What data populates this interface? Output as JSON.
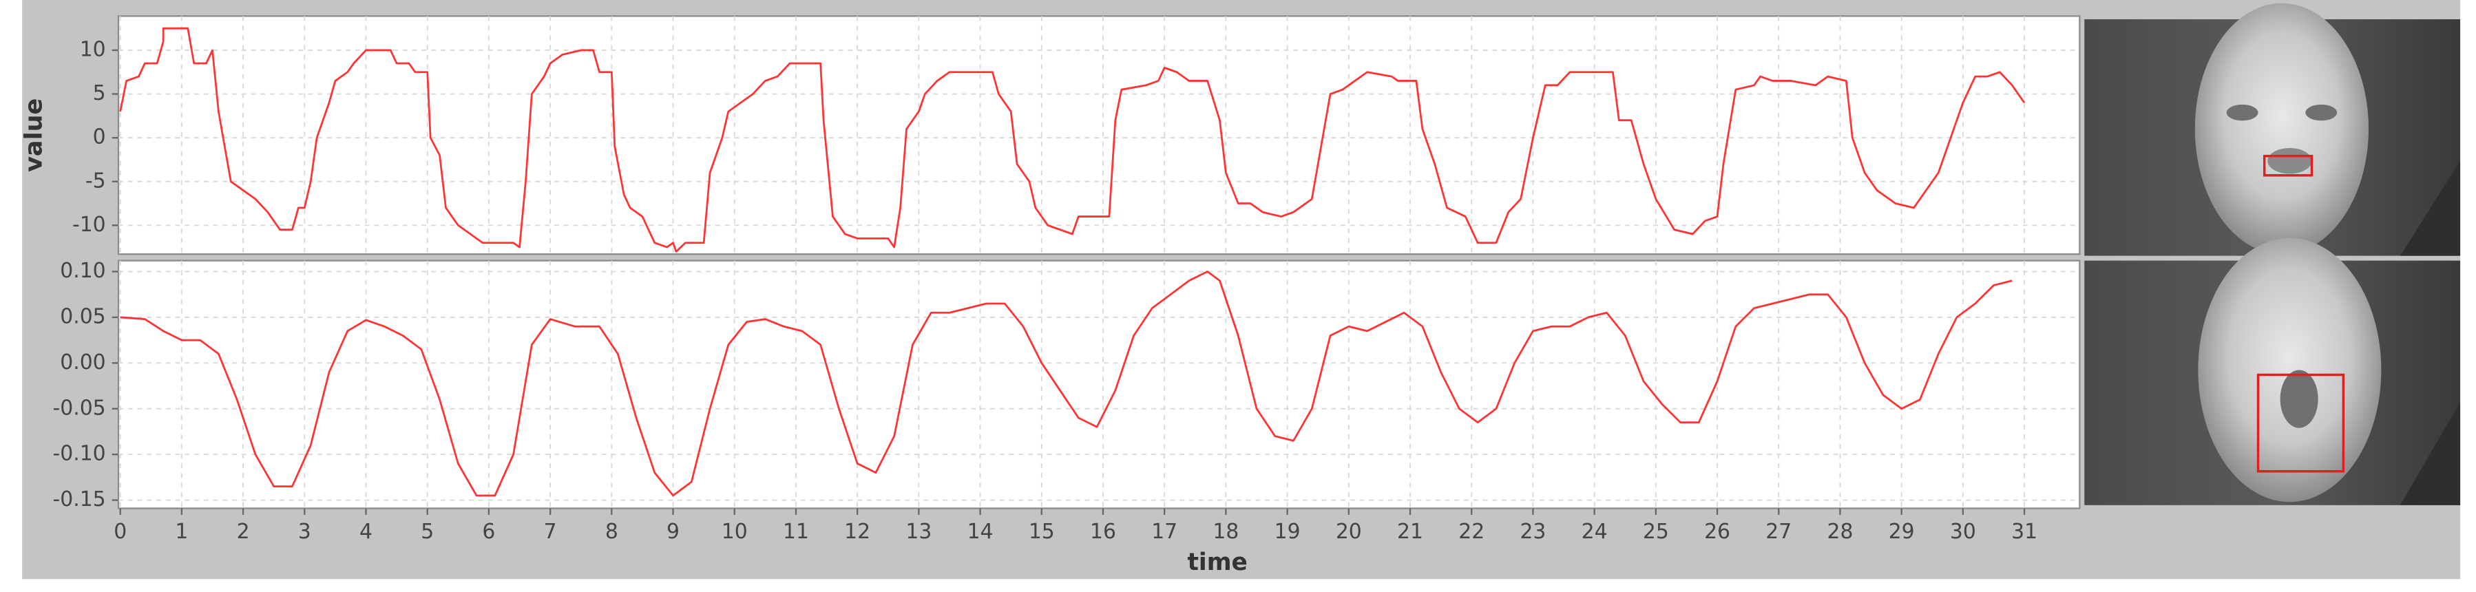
{
  "chart_data": [
    {
      "type": "line",
      "ylabel": "value",
      "color": "#ff3333",
      "x": [
        0,
        0.1,
        0.3,
        0.4,
        0.6,
        0.7,
        0.7,
        1.1,
        1.2,
        1.4,
        1.5,
        1.6,
        1.7,
        1.8,
        2,
        2.2,
        2.4,
        2.6,
        2.8,
        2.9,
        3.0,
        3.1,
        3.2,
        3.4,
        3.5,
        3.7,
        3.8,
        4.0,
        4.4,
        4.5,
        4.7,
        4.8,
        5.0,
        5.05,
        5.2,
        5.3,
        5.5,
        5.7,
        5.9,
        6.2,
        6.4,
        6.5,
        6.6,
        6.7,
        6.9,
        7.0,
        7.2,
        7.5,
        7.7,
        7.8,
        8.0,
        8.05,
        8.2,
        8.3,
        8.5,
        8.7,
        8.9,
        9.0,
        9.05,
        9.2,
        9.5,
        9.6,
        9.8,
        9.9,
        10.1,
        10.3,
        10.5,
        10.7,
        10.9,
        11.4,
        11.45,
        11.6,
        11.8,
        12.0,
        12.5,
        12.6,
        12.7,
        12.8,
        13.0,
        13.1,
        13.3,
        13.5,
        14.2,
        14.3,
        14.5,
        14.6,
        14.8,
        14.9,
        15.1,
        15.3,
        15.5,
        15.6,
        16.1,
        16.2,
        16.3,
        16.7,
        16.9,
        17.0,
        17.2,
        17.4,
        17.7,
        17.9,
        18.0,
        18.2,
        18.4,
        18.6,
        18.9,
        19.1,
        19.4,
        19.5,
        19.7,
        19.9,
        20.1,
        20.3,
        20.7,
        20.8,
        21.1,
        21.2,
        21.4,
        21.6,
        21.9,
        22.1,
        22.4,
        22.6,
        22.8,
        23.0,
        23.2,
        23.4,
        23.6,
        23.8,
        24.3,
        24.4,
        24.6,
        24.8,
        25.0,
        25.3,
        25.6,
        25.8,
        26.0,
        26.1,
        26.3,
        26.6,
        26.7,
        26.9,
        27.2,
        27.6,
        27.8,
        28.1,
        28.2,
        28.4,
        28.6,
        28.9,
        29.2,
        29.4,
        29.6,
        29.8,
        30.0,
        30.2,
        30.4,
        30.6,
        30.8,
        31.0
      ],
      "values": [
        3,
        6.5,
        7,
        8.5,
        8.5,
        11,
        12.5,
        12.5,
        8.5,
        8.5,
        10,
        3,
        -1,
        -5,
        -6,
        -7,
        -8.5,
        -10.5,
        -10.5,
        -8,
        -8,
        -5,
        0,
        4,
        6.5,
        7.5,
        8.5,
        10,
        10,
        8.5,
        8.5,
        7.5,
        7.5,
        0,
        -2,
        -8,
        -10,
        -11,
        -12,
        -12,
        -12,
        -12.5,
        -5,
        5,
        7,
        8.5,
        9.5,
        10,
        10,
        7.5,
        7.5,
        -1,
        -6.5,
        -8,
        -9,
        -12,
        -12.5,
        -12,
        -13,
        -12,
        -12,
        -4,
        0,
        3,
        4,
        5,
        6.5,
        7,
        8.5,
        8.5,
        2,
        -9,
        -11,
        -11.5,
        -11.5,
        -12.5,
        -8,
        1,
        3,
        5,
        6.5,
        7.5,
        7.5,
        5,
        3,
        -3,
        -5,
        -8,
        -10,
        -10.5,
        -11,
        -9,
        -9,
        2,
        5.5,
        6,
        6.5,
        8,
        7.5,
        6.5,
        6.5,
        2,
        -4,
        -7.5,
        -7.5,
        -8.5,
        -9,
        -8.5,
        -7,
        -3,
        5,
        5.5,
        6.5,
        7.5,
        7,
        6.5,
        6.5,
        1,
        -3,
        -8,
        -9,
        -12,
        -12,
        -8.5,
        -7,
        0,
        6,
        6,
        7.5,
        7.5,
        7.5,
        2,
        2,
        -3,
        -7,
        -10.5,
        -11,
        -9.5,
        -9,
        -3,
        5.5,
        6,
        7,
        6.5,
        6.5,
        6,
        7,
        6.5,
        0,
        -4,
        -6,
        -7.5,
        -8,
        -6,
        -4,
        0,
        4,
        7,
        7,
        7.5,
        6,
        4
      ],
      "xlim": [
        -0.03,
        31.9
      ],
      "xticks": [
        0,
        1,
        2,
        3,
        4,
        5,
        6,
        7,
        8,
        9,
        10,
        11,
        12,
        13,
        14,
        15,
        16,
        17,
        18,
        19,
        20,
        21,
        22,
        23,
        24,
        25,
        26,
        27,
        28,
        29,
        30,
        31
      ],
      "ylim": [
        -13.3,
        13.9
      ],
      "yticks": [
        10,
        5,
        0,
        -5,
        -10
      ],
      "grid": true
    },
    {
      "type": "line",
      "xlabel": "time",
      "color": "#ff3333",
      "x": [
        0,
        0.4,
        0.7,
        1.0,
        1.3,
        1.6,
        1.9,
        2.2,
        2.5,
        2.8,
        3.1,
        3.4,
        3.7,
        4.0,
        4.3,
        4.6,
        4.9,
        5.2,
        5.5,
        5.8,
        6.1,
        6.4,
        6.7,
        7.0,
        7.4,
        7.8,
        8.1,
        8.4,
        8.7,
        9.0,
        9.3,
        9.6,
        9.9,
        10.2,
        10.5,
        10.8,
        11.1,
        11.4,
        11.7,
        12.0,
        12.3,
        12.6,
        12.9,
        13.2,
        13.5,
        13.8,
        14.1,
        14.4,
        14.7,
        15.0,
        15.3,
        15.6,
        15.9,
        16.2,
        16.5,
        16.8,
        17.1,
        17.4,
        17.7,
        17.9,
        18.2,
        18.5,
        18.8,
        19.1,
        19.4,
        19.7,
        20.0,
        20.3,
        20.6,
        20.9,
        21.2,
        21.5,
        21.8,
        22.1,
        22.4,
        22.7,
        23.0,
        23.3,
        23.6,
        23.9,
        24.2,
        24.5,
        24.8,
        25.1,
        25.4,
        25.7,
        26.0,
        26.3,
        26.6,
        26.9,
        27.2,
        27.5,
        27.8,
        28.1,
        28.4,
        28.7,
        29.0,
        29.3,
        29.6,
        29.9,
        30.2,
        30.5,
        30.8
      ],
      "values": [
        0.05,
        0.048,
        0.035,
        0.025,
        0.025,
        0.01,
        -0.04,
        -0.1,
        -0.135,
        -0.135,
        -0.09,
        -0.01,
        0.035,
        0.047,
        0.04,
        0.03,
        0.015,
        -0.04,
        -0.11,
        -0.145,
        -0.145,
        -0.1,
        0.02,
        0.048,
        0.04,
        0.04,
        0.01,
        -0.06,
        -0.12,
        -0.145,
        -0.13,
        -0.05,
        0.02,
        0.045,
        0.048,
        0.04,
        0.035,
        0.02,
        -0.05,
        -0.11,
        -0.12,
        -0.08,
        0.02,
        0.055,
        0.055,
        0.06,
        0.065,
        0.065,
        0.04,
        0,
        -0.03,
        -0.06,
        -0.07,
        -0.03,
        0.03,
        0.06,
        0.075,
        0.09,
        0.1,
        0.09,
        0.03,
        -0.05,
        -0.08,
        -0.085,
        -0.05,
        0.03,
        0.04,
        0.035,
        0.045,
        0.055,
        0.04,
        -0.01,
        -0.05,
        -0.065,
        -0.05,
        0,
        0.035,
        0.04,
        0.04,
        0.05,
        0.055,
        0.03,
        -0.02,
        -0.045,
        -0.065,
        -0.065,
        -0.02,
        0.04,
        0.06,
        0.065,
        0.07,
        0.075,
        0.075,
        0.05,
        0,
        -0.035,
        -0.05,
        -0.04,
        0.01,
        0.05,
        0.065,
        0.085,
        0.09
      ],
      "xlim": [
        -0.03,
        31.9
      ],
      "xticks": [
        0,
        1,
        2,
        3,
        4,
        5,
        6,
        7,
        8,
        9,
        10,
        11,
        12,
        13,
        14,
        15,
        16,
        17,
        18,
        19,
        20,
        21,
        22,
        23,
        24,
        25,
        26,
        27,
        28,
        29,
        30,
        31
      ],
      "ylim": [
        -0.159,
        0.112
      ],
      "yticks": [
        {
          "value": 0.1,
          "label": "0.10"
        },
        0.05,
        {
          "value": 0,
          "label": "0.00"
        },
        -0.05,
        {
          "value": -0.1,
          "label": "-0.10"
        },
        -0.15
      ],
      "grid": true
    }
  ]
}
